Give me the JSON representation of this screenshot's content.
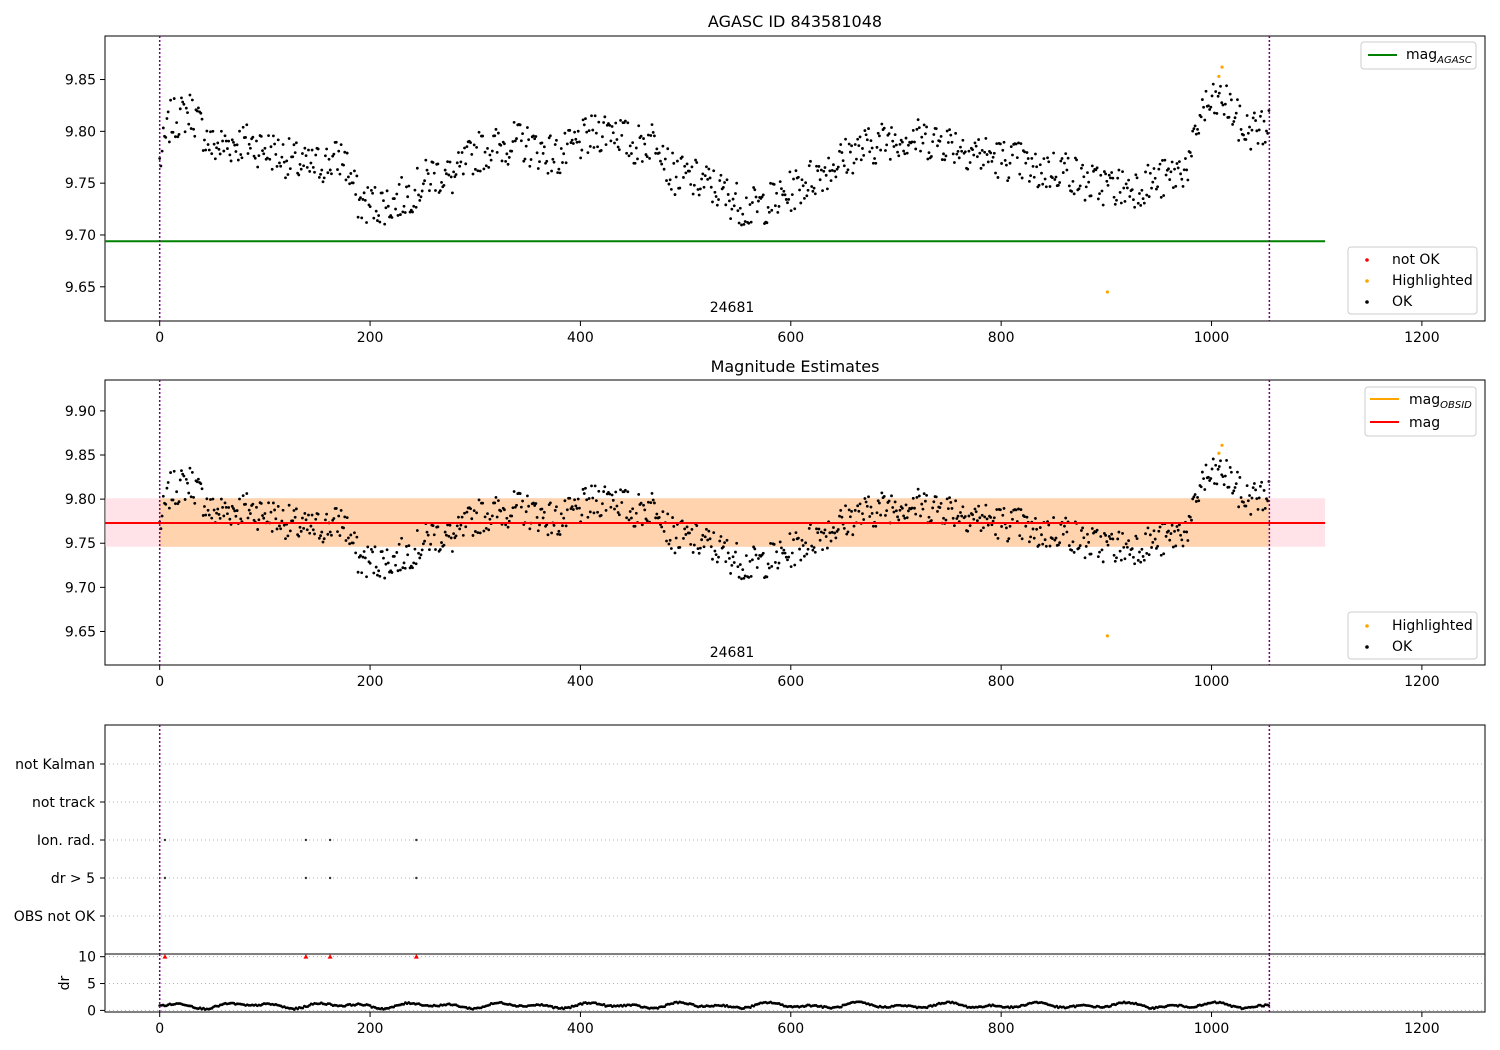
{
  "figure": {
    "observation_label": "24681"
  },
  "chart_data": [
    {
      "type": "scatter",
      "title": "AGASC ID 843581048",
      "xlim": [
        -52,
        1260
      ],
      "ylim": [
        9.617,
        9.892
      ],
      "xticks": [
        0,
        200,
        400,
        600,
        800,
        1000,
        1200
      ],
      "yticks": [
        9.65,
        9.7,
        9.75,
        9.8,
        9.85
      ],
      "ytick_labels": [
        "9.65",
        "9.70",
        "9.75",
        "9.80",
        "9.85"
      ],
      "grid": false,
      "obs_bounds": [
        0,
        1055
      ],
      "hlines": [
        {
          "name": "mag_AGASC",
          "y": 9.694,
          "x0": -52,
          "x1": 1108,
          "color": "#008000"
        }
      ],
      "highlighted": [
        [
          901,
          9.645
        ],
        [
          1007,
          9.853
        ],
        [
          1010,
          9.862
        ]
      ],
      "not_ok": [],
      "legend_lines": [
        {
          "label": "mag",
          "sub": "AGASC",
          "color": "#008000"
        }
      ],
      "legend_points": [
        {
          "label": "not OK",
          "color": "#ff0000"
        },
        {
          "label": "Highlighted",
          "color": "#ffa500"
        },
        {
          "label": "OK",
          "color": "#000000"
        }
      ]
    },
    {
      "type": "scatter",
      "title": "Magnitude Estimates",
      "xlim": [
        -52,
        1260
      ],
      "ylim": [
        9.612,
        9.935
      ],
      "xticks": [
        0,
        200,
        400,
        600,
        800,
        1000,
        1200
      ],
      "yticks": [
        9.65,
        9.7,
        9.75,
        9.8,
        9.85,
        9.9
      ],
      "ytick_labels": [
        "9.65",
        "9.70",
        "9.75",
        "9.80",
        "9.85",
        "9.90"
      ],
      "grid": false,
      "obs_bounds": [
        0,
        1055
      ],
      "hlines": [
        {
          "name": "mag",
          "y": 9.773,
          "x0": -52,
          "x1": 1108,
          "color": "#ff0000"
        }
      ],
      "bands": [
        {
          "y0": 9.746,
          "y1": 9.801,
          "x0": -52,
          "x1": 1108,
          "color": "#ffc0cb"
        },
        {
          "y0": 9.746,
          "y1": 9.801,
          "x0": 0,
          "x1": 1055,
          "color": "#ffa500"
        }
      ],
      "highlighted": [
        [
          901,
          9.645
        ],
        [
          1007,
          9.852
        ],
        [
          1010,
          9.861
        ]
      ],
      "legend_lines": [
        {
          "label": "mag",
          "sub": "OBSID",
          "color": "#ffa500"
        },
        {
          "label": "mag",
          "sub": "",
          "color": "#ff0000"
        }
      ],
      "legend_points": [
        {
          "label": "Highlighted",
          "color": "#ffa500"
        },
        {
          "label": "OK",
          "color": "#000000"
        }
      ]
    },
    {
      "type": "scatter",
      "xlim": [
        -52,
        1260
      ],
      "categories": [
        "not Kalman",
        "not track",
        "Ion. rad.",
        "dr > 5",
        "OBS not OK"
      ],
      "flag_points": {
        "Ion. rad.": [
          5,
          139,
          162,
          244
        ],
        "dr > 5": [
          5,
          139,
          162,
          244
        ]
      },
      "dr_panel": {
        "ylabel": "dr",
        "ylim": [
          -0.3,
          10.5
        ],
        "yticks": [
          0,
          5,
          10
        ],
        "ytick_labels": [
          "0",
          "5",
          "10"
        ],
        "clipped_markers": [
          5,
          139,
          162,
          244
        ],
        "clip_value": 10
      },
      "xticks": [
        0,
        200,
        400,
        600,
        800,
        1000,
        1200
      ],
      "obs_bounds": [
        0,
        1055
      ]
    }
  ]
}
